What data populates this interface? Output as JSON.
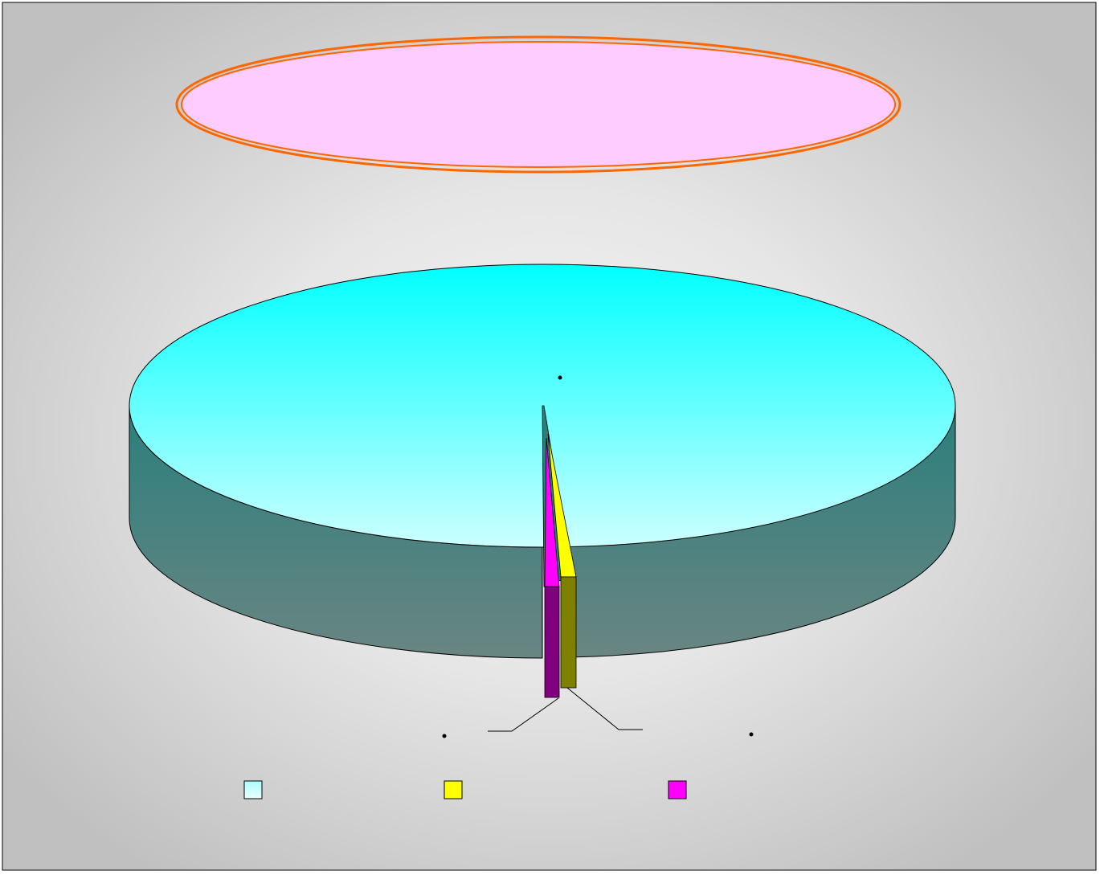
{
  "chart_data": {
    "type": "pie",
    "style": "3d-exploded",
    "title": "",
    "series": [
      {
        "values": [
          98.6,
          0.8,
          0.6
        ],
        "colors": {
          "top": [
            "#aaffff",
            "#ffff00",
            "#ff00ff"
          ],
          "side": [
            "#4e8a86",
            "#808000",
            "#800080"
          ]
        }
      }
    ],
    "data_labels": [
      "",
      "",
      ""
    ],
    "legend": {
      "position": "bottom",
      "entries": [
        "",
        "",
        ""
      ],
      "swatch_colors": [
        "#aaffff",
        "#ffff00",
        "#ff00ff"
      ]
    },
    "title_box": {
      "fill": "#ffccff",
      "border": "#ff6600"
    },
    "background": {
      "center": "#f4f4f4",
      "edge": "#c0c0c0"
    }
  }
}
